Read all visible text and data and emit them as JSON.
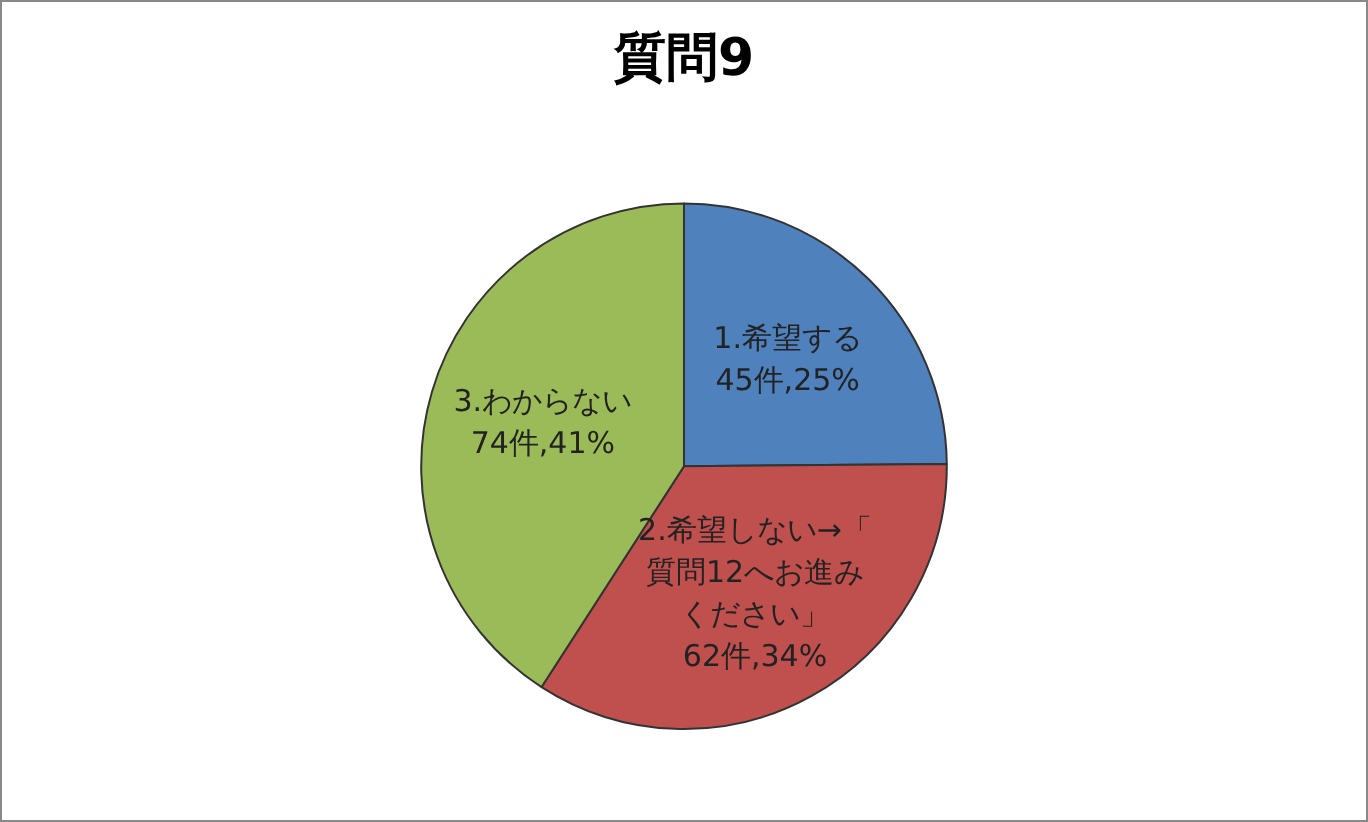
{
  "chart_data": {
    "type": "pie",
    "title": "質問9",
    "categories": [
      "1.希望する",
      "2.希望しない→「質問12へお進みください」",
      "3.わからない"
    ],
    "values": [
      45,
      62,
      74
    ],
    "value_labels": [
      "45件,25%",
      "62件,34%",
      "74件,41%"
    ],
    "colors": [
      "#4f81bd",
      "#c0504d",
      "#9bbb59"
    ],
    "legend": false
  }
}
